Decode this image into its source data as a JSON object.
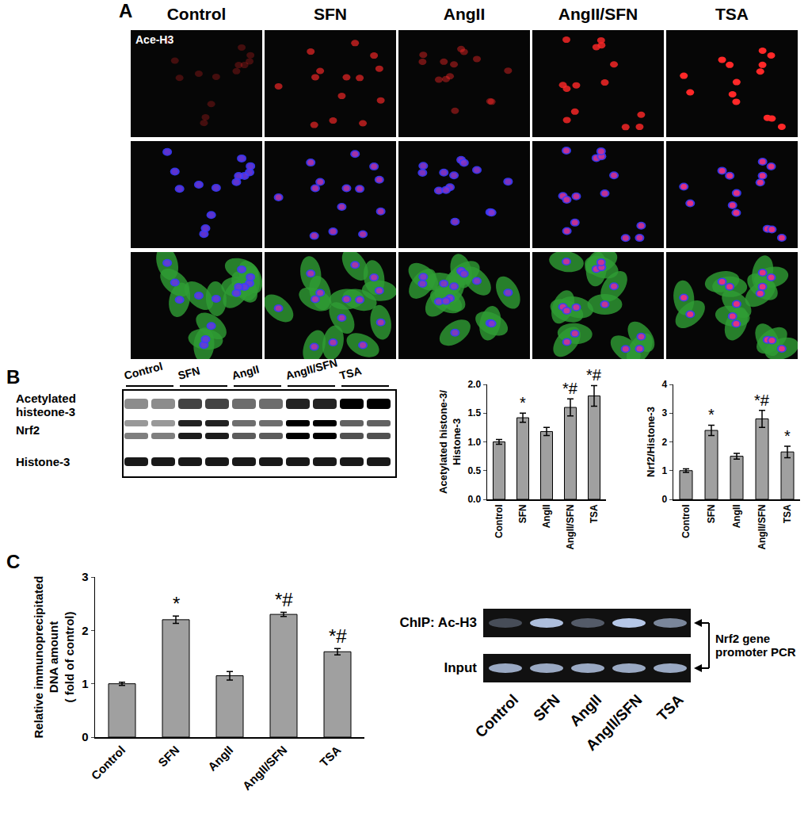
{
  "panels": {
    "A": {
      "label": "A",
      "columns": [
        "Control",
        "SFN",
        "AngII",
        "AngII/SFN",
        "TSA"
      ],
      "stain_label": "Ace-H3"
    },
    "B": {
      "label": "B",
      "blot": {
        "lanes": [
          "Control",
          "SFN",
          "AngII",
          "AngII/SFN",
          "TSA"
        ],
        "rows": [
          [
            "Acetylated",
            "histeone-3"
          ],
          [
            "Nrf2"
          ],
          [
            "Histone-3"
          ]
        ]
      }
    },
    "C": {
      "label": "C",
      "gel": {
        "lanes": [
          "Control",
          "SFN",
          "AngII",
          "AngII/SFN",
          "TSA"
        ],
        "rows": [
          "ChIP: Ac-H3",
          "Input"
        ],
        "bracket_label": [
          "Nrf2 gene",
          "promoter PCR"
        ]
      }
    }
  },
  "chart_data": [
    {
      "type": "bar",
      "y_label": [
        "Acetylated histone-3/",
        "Histone-3"
      ],
      "categories": [
        "Control",
        "SFN",
        "AngII",
        "AngII/SFN",
        "TSA"
      ],
      "values": [
        1.0,
        1.42,
        1.18,
        1.6,
        1.8
      ],
      "error": [
        0.04,
        0.08,
        0.07,
        0.15,
        0.18
      ],
      "significance": [
        null,
        "*",
        null,
        "*#",
        "*#"
      ],
      "color": "#a0a0a0",
      "ylim": [
        0,
        2
      ],
      "yticks": [
        {
          "value": 0,
          "label": "0.0"
        },
        {
          "value": 0.5,
          "label": "0.5"
        },
        {
          "value": 1,
          "label": "1.0"
        },
        {
          "value": 1.5,
          "label": "1.5"
        },
        {
          "value": 2,
          "label": "2.0"
        }
      ],
      "grid": false
    },
    {
      "type": "bar",
      "y_label": [
        "Nrf2/Histone-3"
      ],
      "categories": [
        "Control",
        "SFN",
        "AngII",
        "AngII/SFN",
        "TSA"
      ],
      "values": [
        1.0,
        2.4,
        1.5,
        2.8,
        1.65
      ],
      "error": [
        0.06,
        0.18,
        0.1,
        0.3,
        0.2
      ],
      "significance": [
        null,
        "*",
        null,
        "*#",
        "*"
      ],
      "color": "#a0a0a0",
      "ylim": [
        0,
        4
      ],
      "yticks": [
        0,
        1,
        2,
        3,
        4
      ],
      "grid": false
    },
    {
      "type": "bar",
      "y_label": [
        "Relative immunoprecipitated",
        "DNA amount",
        "( fold of control)"
      ],
      "categories": [
        "Control",
        "SFN",
        "AngII",
        "AngII/SFN",
        "TSA"
      ],
      "values": [
        1.0,
        2.2,
        1.15,
        2.3,
        1.6
      ],
      "error": [
        0.03,
        0.07,
        0.08,
        0.04,
        0.06
      ],
      "significance": [
        null,
        "*",
        null,
        "*#",
        "*#"
      ],
      "color": "#a0a0a0",
      "ylim": [
        0,
        3
      ],
      "yticks": [
        0,
        1,
        2,
        3
      ],
      "grid": false
    }
  ]
}
